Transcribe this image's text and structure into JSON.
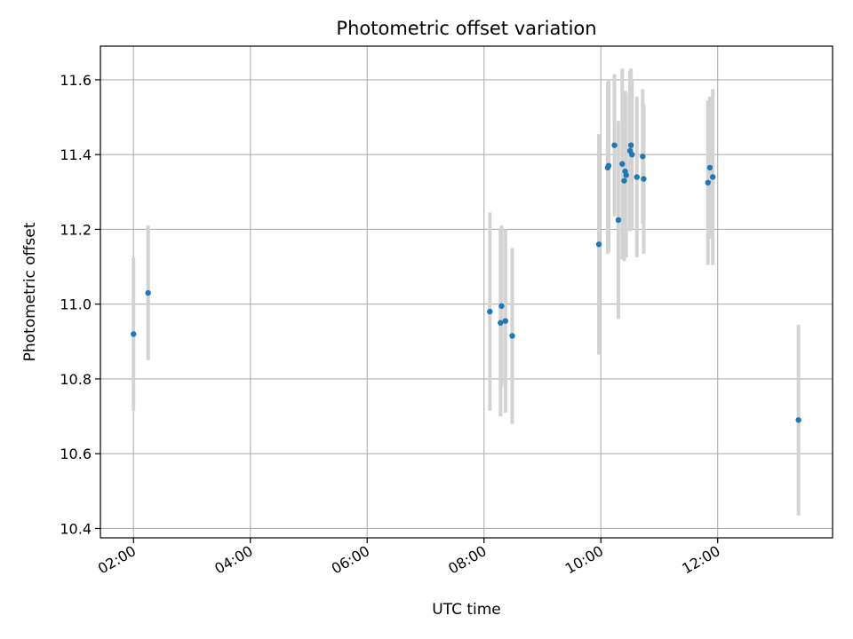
{
  "chart_data": {
    "type": "scatter",
    "title": "Photometric offset variation",
    "xlabel": "UTC time",
    "ylabel": "Photometric offset",
    "x_ticks": [
      "02:00",
      "04:00",
      "06:00",
      "08:00",
      "10:00",
      "12:00"
    ],
    "y_ticks": [
      "10.4",
      "10.6",
      "10.8",
      "11.0",
      "11.2",
      "11.4",
      "11.6"
    ],
    "xlim": [
      "01:26",
      "13:58"
    ],
    "ylim": [
      10.375,
      11.69
    ],
    "grid": true,
    "colors": {
      "point": "#1f77b4",
      "errorbar": "#d3d3d3",
      "grid": "#b0b0b0"
    },
    "points": [
      {
        "time": "02:00",
        "y": 10.92,
        "err": 0.205
      },
      {
        "time": "02:15",
        "y": 11.03,
        "err": 0.18
      },
      {
        "time": "08:06",
        "y": 10.98,
        "err": 0.265
      },
      {
        "time": "08:17",
        "y": 10.95,
        "err": 0.25
      },
      {
        "time": "08:18",
        "y": 10.995,
        "err": 0.215
      },
      {
        "time": "08:22",
        "y": 10.955,
        "err": 0.245
      },
      {
        "time": "08:29",
        "y": 10.915,
        "err": 0.235
      },
      {
        "time": "09:58",
        "y": 11.16,
        "err": 0.295
      },
      {
        "time": "10:07",
        "y": 11.365,
        "err": 0.23
      },
      {
        "time": "10:08",
        "y": 11.37,
        "err": 0.23
      },
      {
        "time": "10:14",
        "y": 11.425,
        "err": 0.19
      },
      {
        "time": "10:18",
        "y": 11.225,
        "err": 0.265
      },
      {
        "time": "10:22",
        "y": 11.375,
        "err": 0.255
      },
      {
        "time": "10:24",
        "y": 11.33,
        "err": 0.215
      },
      {
        "time": "10:25",
        "y": 11.355,
        "err": 0.215
      },
      {
        "time": "10:26",
        "y": 11.345,
        "err": 0.22
      },
      {
        "time": "10:30",
        "y": 11.41,
        "err": 0.215
      },
      {
        "time": "10:31",
        "y": 11.425,
        "err": 0.205
      },
      {
        "time": "10:32",
        "y": 11.4,
        "err": 0.2
      },
      {
        "time": "10:37",
        "y": 11.34,
        "err": 0.215
      },
      {
        "time": "10:43",
        "y": 11.395,
        "err": 0.18
      },
      {
        "time": "10:44",
        "y": 11.335,
        "err": 0.2
      },
      {
        "time": "11:50",
        "y": 11.325,
        "err": 0.22
      },
      {
        "time": "11:52",
        "y": 11.365,
        "err": 0.19
      },
      {
        "time": "11:55",
        "y": 11.34,
        "err": 0.235
      },
      {
        "time": "13:23",
        "y": 10.69,
        "err": 0.255
      }
    ]
  }
}
